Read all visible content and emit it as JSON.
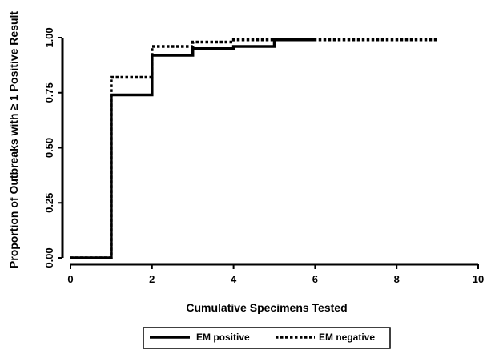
{
  "chart_data": {
    "type": "line",
    "step": true,
    "xlabel": "Cumulative Specimens Tested",
    "ylabel": "Proportion of Outbreaks with ≥ 1 Positive Result",
    "xlim": [
      0,
      10
    ],
    "ylim": [
      0,
      1
    ],
    "x_ticks": [
      0,
      2,
      4,
      6,
      8,
      10
    ],
    "y_ticks": [
      0,
      0.25,
      0.5,
      0.75,
      1
    ],
    "x_tick_labels": [
      "0",
      "2",
      "4",
      "6",
      "8",
      "10"
    ],
    "y_tick_labels": [
      "0.00",
      "0.25",
      "0.50",
      "0.75",
      "1.00"
    ],
    "grid": false,
    "legend_position": "bottom",
    "series": [
      {
        "name": "EM positive",
        "style": "solid",
        "color": "#000000",
        "x": [
          0,
          1,
          2,
          3,
          4,
          5,
          6
        ],
        "y": [
          0,
          0.74,
          0.92,
          0.95,
          0.96,
          0.99,
          0.99
        ]
      },
      {
        "name": "EM negative",
        "style": "dotted",
        "color": "#000000",
        "x": [
          0,
          1,
          2,
          3,
          4,
          5,
          9
        ],
        "y": [
          0,
          0.82,
          0.96,
          0.98,
          0.99,
          0.99,
          0.99
        ]
      }
    ]
  }
}
